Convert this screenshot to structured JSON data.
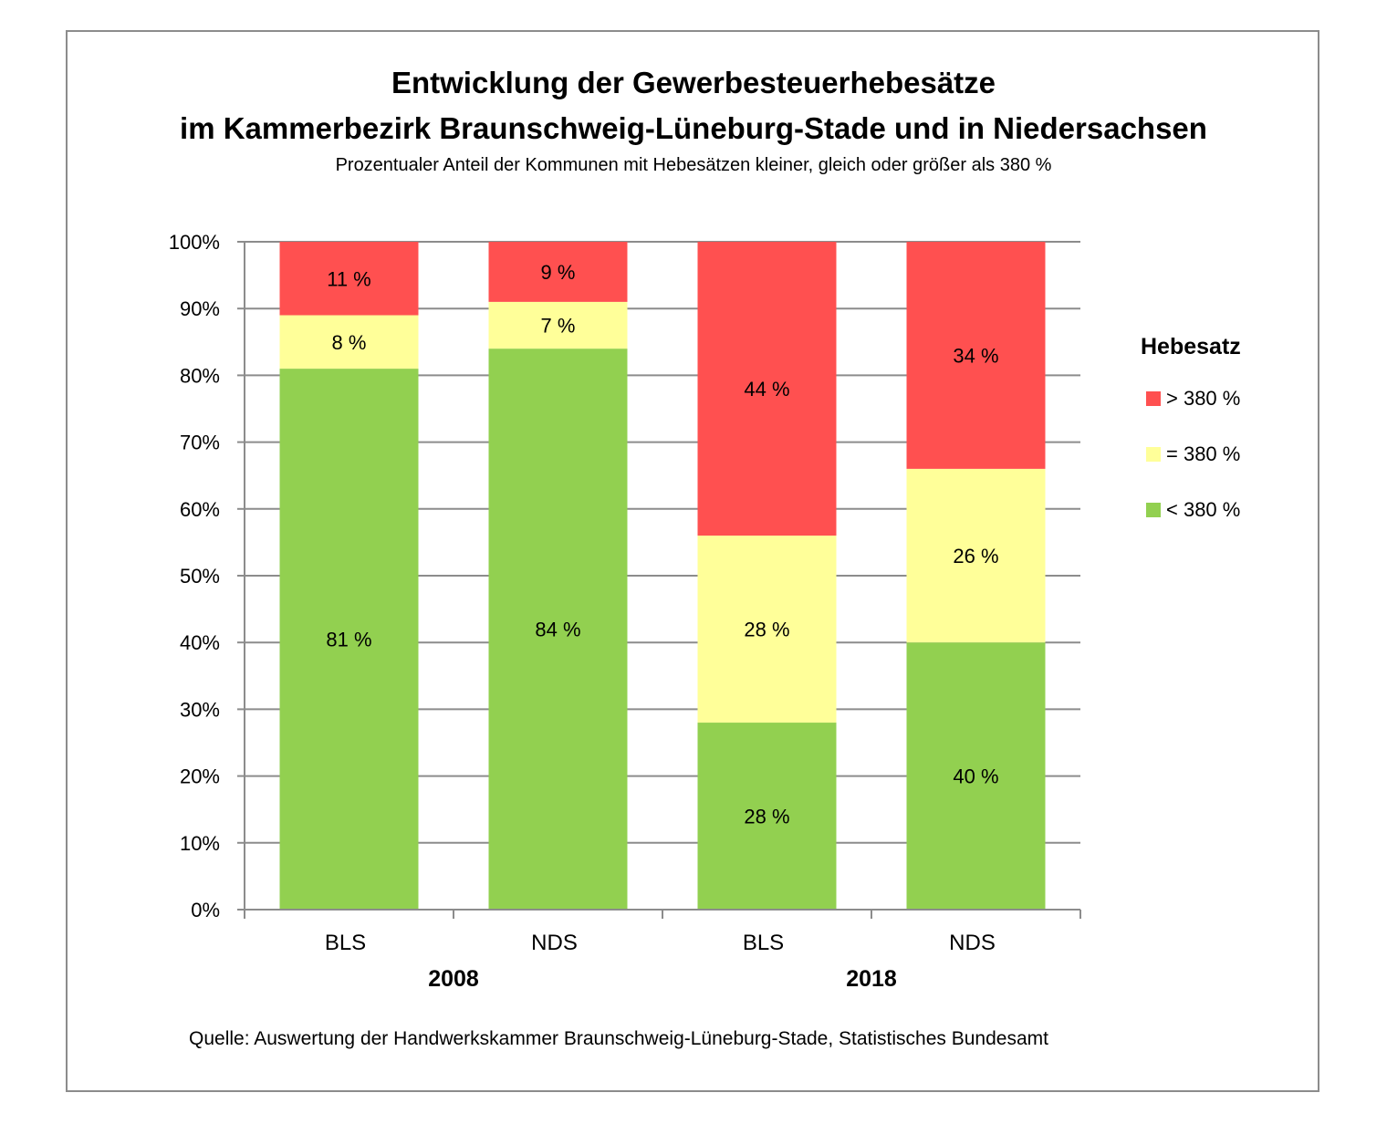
{
  "chart_data": {
    "type": "bar",
    "stacked": true,
    "title": "Entwicklung der Gewerbesteuerhebesätze",
    "title_line2": "im Kammerbezirk Braunschweig-Lüneburg-Stade und in Niedersachsen",
    "subtitle": "Prozentualer Anteil der Kommunen mit Hebesätzen kleiner, gleich oder größer als 380 %",
    "source": "Quelle: Auswertung der Handwerkskammer Braunschweig-Lüneburg-Stade, Statistisches Bundesamt",
    "categories": [
      "BLS",
      "NDS",
      "BLS",
      "NDS"
    ],
    "groups": [
      {
        "label": "2008",
        "categories": [
          0,
          1
        ]
      },
      {
        "label": "2018",
        "categories": [
          2,
          3
        ]
      }
    ],
    "series": [
      {
        "name": "< 380 %",
        "color": "#92d050",
        "values": [
          81,
          84,
          28,
          40
        ],
        "labels": [
          "81 %",
          "84 %",
          "28 %",
          "40 %"
        ]
      },
      {
        "name": "= 380 %",
        "color": "#ffff99",
        "values": [
          8,
          7,
          28,
          26
        ],
        "labels": [
          "8 %",
          "7 %",
          "28 %",
          "26 %"
        ]
      },
      {
        "name": "> 380 %",
        "color": "#ff5050",
        "values": [
          11,
          9,
          44,
          34
        ],
        "labels": [
          "11 %",
          "9 %",
          "44 %",
          "34 %"
        ]
      }
    ],
    "legend_title": "Hebesatz",
    "legend_order": [
      "> 380 %",
      "= 380 %",
      "< 380 %"
    ],
    "ylim": [
      0,
      100
    ],
    "yticks": [
      0,
      10,
      20,
      30,
      40,
      50,
      60,
      70,
      80,
      90,
      100
    ],
    "ytick_labels": [
      "0%",
      "10%",
      "20%",
      "30%",
      "40%",
      "50%",
      "60%",
      "70%",
      "80%",
      "90%",
      "100%"
    ],
    "grid": true,
    "legend_position": "right"
  }
}
